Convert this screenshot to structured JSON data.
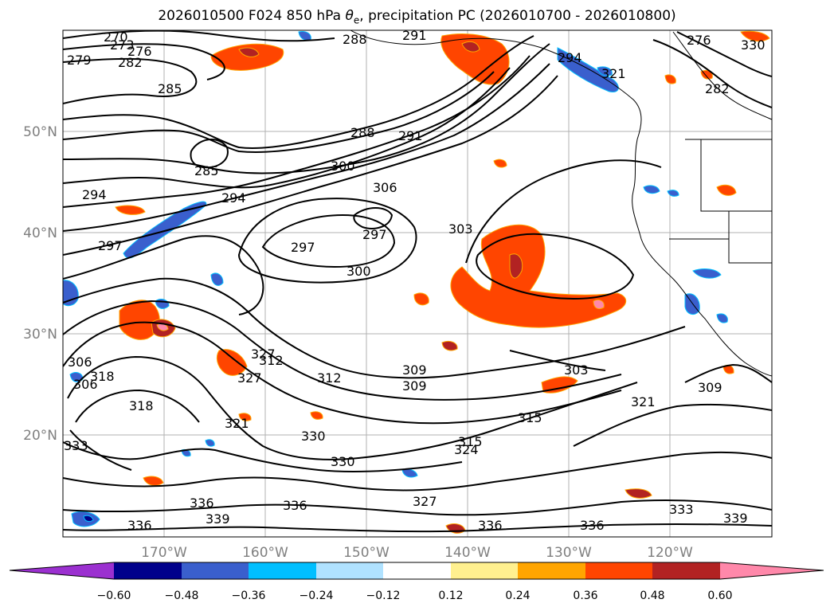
{
  "title": {
    "prefix": "2026010500 F024 850 hPa ",
    "symbol": "θ",
    "subscript": "e",
    "suffix": ", precipitation PC (2026010700 - 2026010800)"
  },
  "map": {
    "lat_labels": [
      "50°N",
      "40°N",
      "30°N",
      "20°N"
    ],
    "lon_labels": [
      "170°W",
      "160°W",
      "150°W",
      "140°W",
      "130°W",
      "120°W"
    ],
    "contour_labels": [
      "270",
      "273",
      "276",
      "279",
      "282",
      "285",
      "288",
      "291",
      "294",
      "297",
      "300",
      "303",
      "306",
      "309",
      "312",
      "315",
      "318",
      "321",
      "324",
      "327",
      "330",
      "333",
      "336",
      "339",
      "276",
      "282",
      "288",
      "285",
      "294",
      "297",
      "297",
      "300",
      "303",
      "306",
      "309",
      "309",
      "312",
      "315",
      "318",
      "321",
      "327",
      "330",
      "333",
      "336",
      "336",
      "336",
      "336",
      "339",
      "321",
      "327",
      "306",
      "330",
      "291",
      "294"
    ]
  },
  "colorbar": {
    "colors": [
      "#9b30d0",
      "#00008b",
      "#3a5fcd",
      "#00bfff",
      "#b0e2ff",
      "#ffffff",
      "#fff08f",
      "#ffa500",
      "#ff4500",
      "#b22222",
      "#ff88aa"
    ],
    "ticks": [
      "−0.60",
      "−0.48",
      "−0.36",
      "−0.24",
      "−0.12",
      "0.12",
      "0.24",
      "0.36",
      "0.48",
      "0.60"
    ]
  }
}
